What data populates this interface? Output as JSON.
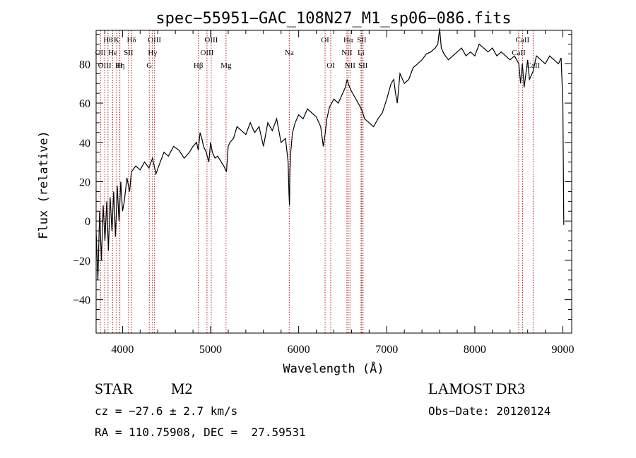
{
  "chart_data": {
    "type": "line",
    "title": "spec−55951−GAC_108N27_M1_sp06−086.fits",
    "xlabel": "Wavelength (Å)",
    "ylabel": "Flux (relative)",
    "xlim": [
      3700,
      9100
    ],
    "ylim": [
      -57,
      97
    ],
    "xticks": [
      4000,
      5000,
      6000,
      7000,
      8000,
      9000
    ],
    "xtick_labels": [
      "4000",
      "5000",
      "6000",
      "7000",
      "8000",
      "9000"
    ],
    "yticks": [
      -40,
      -20,
      0,
      20,
      40,
      60,
      80
    ],
    "ytick_labels": [
      "−40",
      "−20",
      "0",
      "20",
      "40",
      "60",
      "80"
    ],
    "series": [
      {
        "name": "flux",
        "x": [
          3700,
          3720,
          3740,
          3760,
          3780,
          3800,
          3820,
          3840,
          3860,
          3880,
          3900,
          3920,
          3940,
          3960,
          3980,
          4000,
          4020,
          4050,
          4080,
          4100,
          4150,
          4200,
          4250,
          4300,
          4340,
          4380,
          4420,
          4470,
          4520,
          4580,
          4640,
          4700,
          4760,
          4800,
          4840,
          4860,
          4880,
          4900,
          4920,
          4950,
          4980,
          5000,
          5020,
          5050,
          5080,
          5120,
          5150,
          5180,
          5200,
          5220,
          5260,
          5300,
          5350,
          5400,
          5450,
          5500,
          5550,
          5600,
          5650,
          5700,
          5750,
          5800,
          5850,
          5880,
          5890,
          5896,
          5900,
          5910,
          5930,
          5960,
          6000,
          6050,
          6100,
          6150,
          6200,
          6250,
          6280,
          6300,
          6320,
          6350,
          6400,
          6450,
          6500,
          6530,
          6550,
          6563,
          6580,
          6600,
          6650,
          6700,
          6720,
          6750,
          6800,
          6850,
          6900,
          6950,
          7000,
          7050,
          7080,
          7100,
          7120,
          7150,
          7200,
          7250,
          7300,
          7350,
          7400,
          7450,
          7500,
          7550,
          7580,
          7600,
          7620,
          7650,
          7700,
          7750,
          7800,
          7850,
          7900,
          7950,
          8000,
          8050,
          8100,
          8150,
          8200,
          8250,
          8300,
          8350,
          8400,
          8450,
          8500,
          8520,
          8540,
          8560,
          8600,
          8620,
          8660,
          8700,
          8750,
          8800,
          8850,
          8900,
          8950,
          8980,
          9000,
          9010
        ],
        "y": [
          -5,
          -30,
          5,
          -20,
          8,
          -10,
          10,
          -15,
          12,
          -5,
          15,
          -8,
          18,
          0,
          20,
          5,
          10,
          22,
          15,
          25,
          28,
          26,
          30,
          27,
          32,
          24,
          29,
          35,
          33,
          38,
          36,
          32,
          35,
          38,
          40,
          36,
          45,
          42,
          38,
          35,
          30,
          40,
          35,
          32,
          33,
          30,
          28,
          25,
          38,
          40,
          42,
          48,
          46,
          44,
          50,
          45,
          48,
          38,
          50,
          46,
          52,
          40,
          42,
          30,
          14,
          8,
          25,
          35,
          45,
          50,
          54,
          52,
          57,
          55,
          53,
          48,
          38,
          44,
          52,
          58,
          62,
          60,
          65,
          68,
          72,
          70,
          68,
          66,
          62,
          58,
          56,
          52,
          50,
          48,
          52,
          55,
          62,
          70,
          72,
          65,
          60,
          75,
          70,
          72,
          78,
          80,
          82,
          85,
          86,
          88,
          90,
          98,
          88,
          85,
          82,
          84,
          86,
          88,
          84,
          86,
          84,
          90,
          88,
          86,
          88,
          84,
          86,
          84,
          82,
          84,
          80,
          70,
          80,
          68,
          82,
          72,
          76,
          84,
          82,
          80,
          84,
          82,
          80,
          83,
          60,
          -2
        ]
      }
    ],
    "line_markers": [
      {
        "wavelength": 3750,
        "label": "OII",
        "row": 1
      },
      {
        "wavelength": 3798,
        "label": "OIII",
        "row": 2
      },
      {
        "wavelength": 3835,
        "label": "Hθ",
        "row": 0
      },
      {
        "wavelength": 3889,
        "label": "He",
        "row": 1
      },
      {
        "wavelength": 3933,
        "label": "K",
        "row": 0
      },
      {
        "wavelength": 3970,
        "label": "Hη",
        "row": 2
      },
      {
        "wavelength": 3968,
        "label": "H",
        "row": 2
      },
      {
        "wavelength": 4068,
        "label": "SII",
        "row": 1
      },
      {
        "wavelength": 4102,
        "label": "Hδ",
        "row": 0
      },
      {
        "wavelength": 4304,
        "label": "G",
        "row": 2
      },
      {
        "wavelength": 4340,
        "label": "Hγ",
        "row": 1
      },
      {
        "wavelength": 4363,
        "label": "OIII",
        "row": 0
      },
      {
        "wavelength": 4861,
        "label": "Hβ",
        "row": 2
      },
      {
        "wavelength": 4959,
        "label": "OIII",
        "row": 1
      },
      {
        "wavelength": 5007,
        "label": "OIII",
        "row": 0
      },
      {
        "wavelength": 5175,
        "label": "Mg",
        "row": 2
      },
      {
        "wavelength": 5893,
        "label": "Na",
        "row": 1
      },
      {
        "wavelength": 6300,
        "label": "OI",
        "row": 0
      },
      {
        "wavelength": 6364,
        "label": "OI",
        "row": 2
      },
      {
        "wavelength": 6548,
        "label": "NII",
        "row": 1
      },
      {
        "wavelength": 6563,
        "label": "Hα",
        "row": 0
      },
      {
        "wavelength": 6583,
        "label": "NII",
        "row": 2
      },
      {
        "wavelength": 6708,
        "label": "Li",
        "row": 1
      },
      {
        "wavelength": 6716,
        "label": "SII",
        "row": 0
      },
      {
        "wavelength": 6731,
        "label": "SII",
        "row": 2
      },
      {
        "wavelength": 8498,
        "label": "CaII",
        "row": 1
      },
      {
        "wavelength": 8542,
        "label": "CaII",
        "row": 0
      },
      {
        "wavelength": 8662,
        "label": "CaII",
        "row": 2
      }
    ]
  },
  "info": {
    "object_class": "STAR",
    "subclass": "M2",
    "survey": "LAMOST DR3",
    "redshift": "cz = −27.6 ± 2.7 km/s",
    "obs_date": "Obs−Date: 20120124",
    "coords": "RA = 110.75908, DEC =  27.59531"
  }
}
